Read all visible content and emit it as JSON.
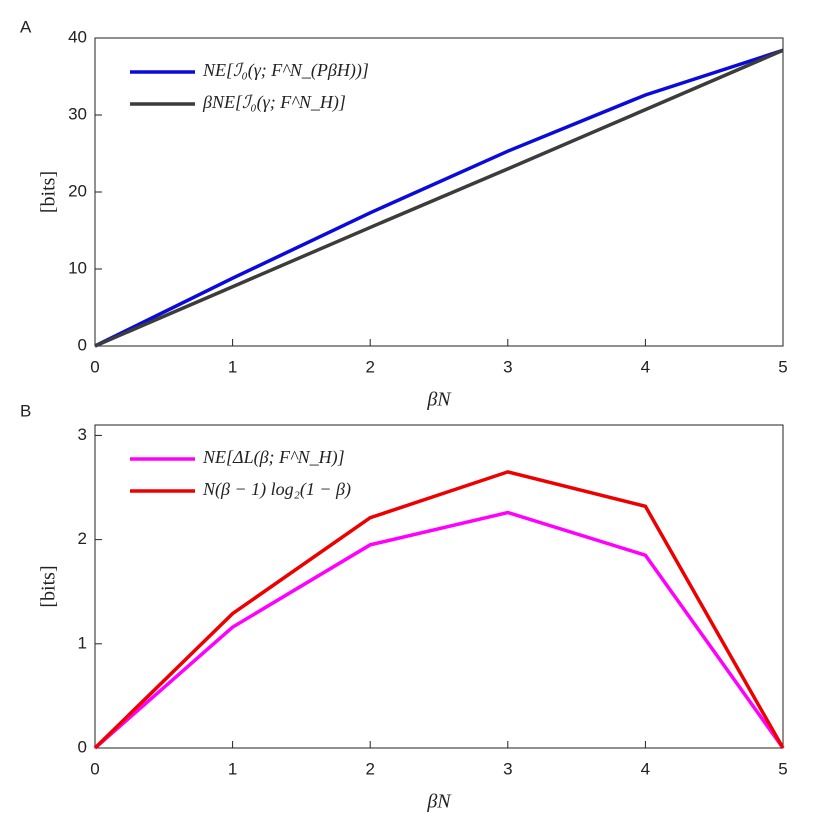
{
  "chart_data": [
    {
      "type": "line",
      "panel": "A",
      "xlabel": "βN",
      "ylabel": "[bits]",
      "x": [
        0,
        1,
        2,
        3,
        4,
        5
      ],
      "xlim": [
        0,
        5
      ],
      "xticks": [
        0,
        1,
        2,
        3,
        4,
        5
      ],
      "ylim": [
        0,
        40
      ],
      "yticks": [
        0,
        10,
        20,
        30,
        40
      ],
      "legend": "upper left",
      "series": [
        {
          "name": "NE[ℐ₀(γ; F^N_(PβH))]",
          "color": "#0a0adc",
          "values": [
            0,
            8.8,
            17.3,
            25.3,
            32.6,
            38.4
          ]
        },
        {
          "name": "βNE[ℐ₀(γ; F^N_H)]",
          "color": "#3c3c3c",
          "values": [
            0,
            7.7,
            15.4,
            23.0,
            30.7,
            38.4
          ]
        }
      ]
    },
    {
      "type": "line",
      "panel": "B",
      "xlabel": "βN",
      "ylabel": "[bits]",
      "x": [
        0,
        1,
        2,
        3,
        4,
        5
      ],
      "xlim": [
        0,
        5
      ],
      "xticks": [
        0,
        1,
        2,
        3,
        4,
        5
      ],
      "ylim": [
        0,
        3.1
      ],
      "yticks": [
        0,
        1,
        2,
        3
      ],
      "legend": "upper left",
      "series": [
        {
          "name": "NE[ΔL(β; F^N_H)]",
          "color": "#ff00ff",
          "values": [
            0,
            1.16,
            1.95,
            2.26,
            1.85,
            0
          ]
        },
        {
          "name": "N(β − 1) log₂(1 − β)",
          "color": "#ee0000",
          "values": [
            0,
            1.29,
            2.21,
            2.65,
            2.32,
            0
          ]
        }
      ]
    }
  ]
}
